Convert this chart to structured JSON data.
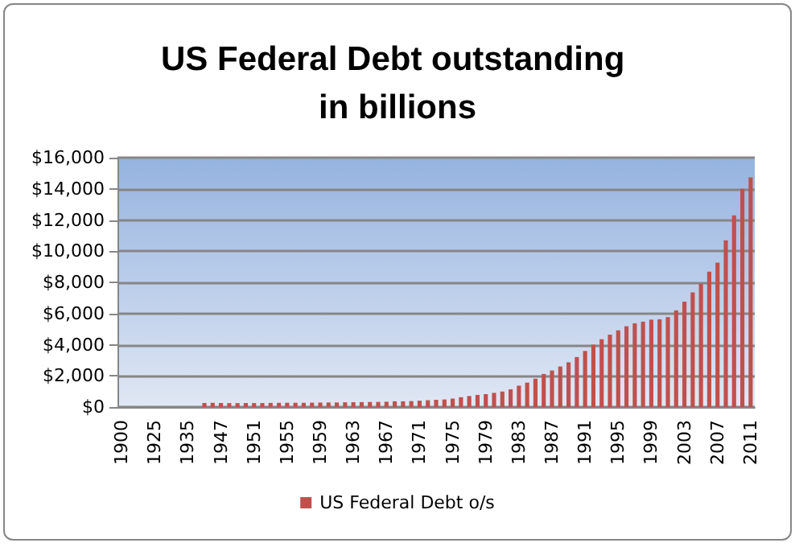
{
  "chart_data": {
    "type": "bar",
    "title": "US Federal Debt outstanding in billions",
    "categories": [
      "1900",
      null,
      null,
      null,
      "1925",
      null,
      null,
      null,
      "1935",
      null,
      null,
      null,
      "1947",
      null,
      null,
      null,
      "1951",
      null,
      null,
      null,
      "1955",
      null,
      null,
      null,
      "1959",
      null,
      null,
      null,
      "1963",
      null,
      null,
      null,
      "1967",
      null,
      null,
      null,
      "1971",
      null,
      null,
      null,
      "1975",
      null,
      null,
      null,
      "1979",
      null,
      null,
      null,
      "1983",
      null,
      null,
      null,
      "1987",
      null,
      null,
      null,
      "1991",
      null,
      null,
      null,
      "1995",
      null,
      null,
      null,
      "1999",
      null,
      null,
      null,
      "2003",
      null,
      null,
      null,
      "2007",
      null,
      null,
      null,
      "2011"
    ],
    "series": [
      {
        "name": "US Federal Debt o/s",
        "color": "#c0504d",
        "values": [
          0,
          0,
          0,
          0,
          0,
          0,
          0,
          0,
          0,
          0,
          259,
          269,
          258,
          252,
          253,
          257,
          255,
          259,
          266,
          271,
          274,
          273,
          272,
          280,
          288,
          291,
          293,
          303,
          310,
          316,
          322,
          328,
          340,
          369,
          366,
          381,
          408,
          436,
          466,
          484,
          542,
          629,
          706,
          777,
          829,
          909,
          995,
          1137,
          1372,
          1565,
          1817,
          2121,
          2346,
          2601,
          2868,
          3206,
          3598,
          4002,
          4351,
          4643,
          4921,
          5181,
          5369,
          5478,
          5606,
          5629,
          5770,
          6198,
          6760,
          7355,
          7905,
          8680,
          9270,
          10700,
          12300,
          14000,
          14730
        ]
      }
    ],
    "ylim": [
      0,
      16000
    ],
    "yticks": [
      {
        "value": 0,
        "label": "$0"
      },
      {
        "value": 2000,
        "label": "$2,000"
      },
      {
        "value": 4000,
        "label": "$4,000"
      },
      {
        "value": 6000,
        "label": "$6,000"
      },
      {
        "value": 8000,
        "label": "$8,000"
      },
      {
        "value": 10000,
        "label": "$10,000"
      },
      {
        "value": 12000,
        "label": "$12,000"
      },
      {
        "value": 14000,
        "label": "$14,000"
      },
      {
        "value": 16000,
        "label": "$16,000"
      }
    ],
    "grid": "y",
    "legend": "bottom"
  }
}
